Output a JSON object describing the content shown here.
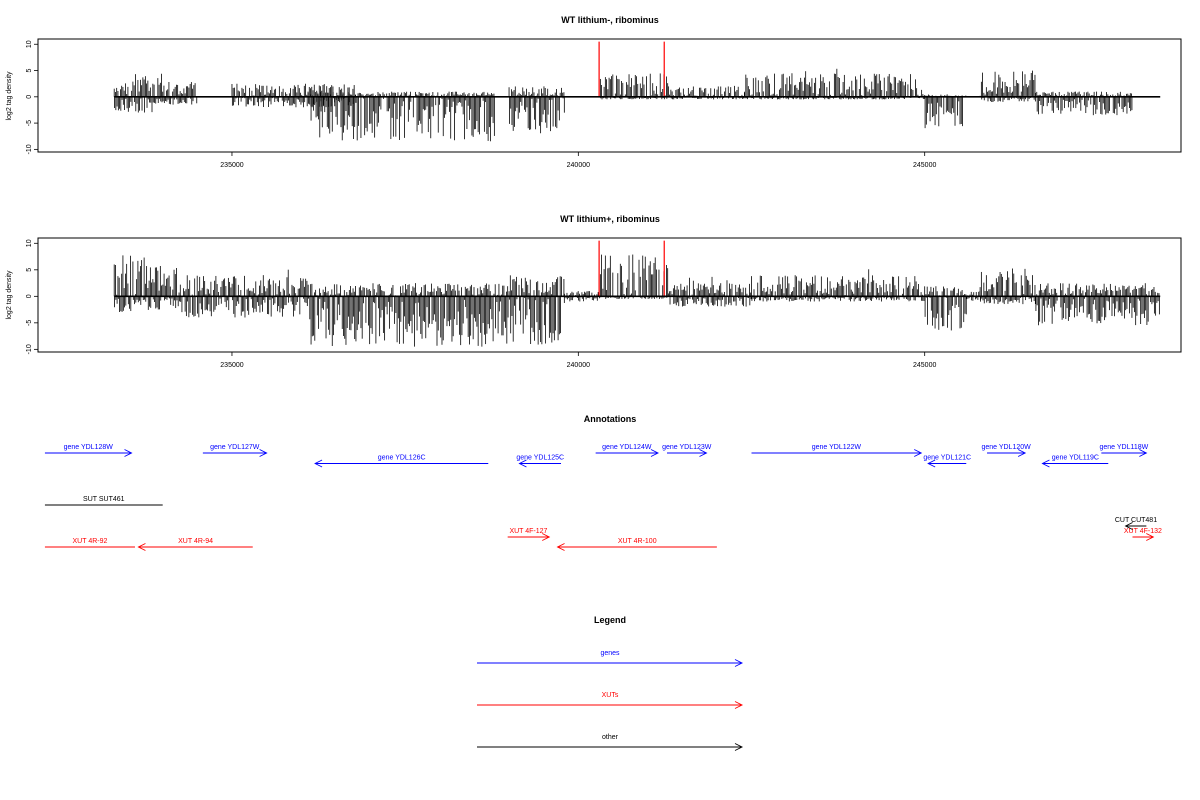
{
  "chart_data": [
    {
      "type": "bar",
      "title": "WT lithium-, ribominus",
      "ylabel": "log2 tag density",
      "xlim": [
        232200,
        248700
      ],
      "ylim": [
        -10.5,
        11
      ],
      "x_ticks": [
        235000,
        240000,
        245000
      ],
      "y_ticks": [
        -10,
        -5,
        0,
        5,
        10
      ],
      "x_tick_labels": [
        "235000",
        "240000",
        "245000"
      ],
      "y_tick_labels": [
        "-10",
        "-5",
        "0",
        "5",
        "10"
      ],
      "baseline_extent": [
        233300,
        248400
      ],
      "density_profile": [
        {
          "start": 233300,
          "end": 234000,
          "max": 4.5,
          "min": -3
        },
        {
          "start": 234000,
          "end": 234500,
          "max": 3,
          "min": -1.5
        },
        {
          "start": 235000,
          "end": 236800,
          "max": 2.5,
          "min": -2
        },
        {
          "start": 236100,
          "end": 238800,
          "max": 1,
          "min": -8.5
        },
        {
          "start": 239000,
          "end": 239800,
          "max": 2,
          "min": -7
        },
        {
          "start": 240300,
          "end": 241300,
          "max": 4.5,
          "min": -0.5
        },
        {
          "start": 241300,
          "end": 242400,
          "max": 2,
          "min": -0.5
        },
        {
          "start": 242400,
          "end": 245000,
          "max": 4.5,
          "min": -0.5
        },
        {
          "start": 245000,
          "end": 245600,
          "max": 0.5,
          "min": -6
        },
        {
          "start": 245800,
          "end": 246600,
          "max": 5,
          "min": -1
        },
        {
          "start": 246600,
          "end": 248000,
          "max": 1,
          "min": -3.5
        }
      ],
      "highlight_lines": [
        {
          "x": 240300,
          "y": 10.5,
          "color": "#ff0000"
        },
        {
          "x": 241240,
          "y": 10.5,
          "color": "#ff0000"
        }
      ]
    },
    {
      "type": "bar",
      "title": "WT lithium+, ribominus",
      "ylabel": "log2 tag density",
      "xlim": [
        232200,
        248700
      ],
      "ylim": [
        -10.5,
        11
      ],
      "x_ticks": [
        235000,
        240000,
        245000
      ],
      "y_ticks": [
        -10,
        -5,
        0,
        5,
        10
      ],
      "x_tick_labels": [
        "235000",
        "240000",
        "245000"
      ],
      "y_tick_labels": [
        "-10",
        "-5",
        "0",
        "5",
        "10"
      ],
      "baseline_extent": [
        233300,
        248400
      ],
      "density_profile": [
        {
          "start": 233300,
          "end": 234300,
          "max": 8,
          "min": -3
        },
        {
          "start": 234300,
          "end": 236100,
          "max": 4,
          "min": -4
        },
        {
          "start": 236100,
          "end": 239000,
          "max": 2.5,
          "min": -9.5
        },
        {
          "start": 239000,
          "end": 239800,
          "max": 4,
          "min": -10
        },
        {
          "start": 239800,
          "end": 240300,
          "max": 1,
          "min": -1
        },
        {
          "start": 240300,
          "end": 241300,
          "max": 8,
          "min": -0.5
        },
        {
          "start": 241300,
          "end": 242500,
          "max": 2.5,
          "min": -2
        },
        {
          "start": 242500,
          "end": 245000,
          "max": 4,
          "min": -1
        },
        {
          "start": 245000,
          "end": 245600,
          "max": 2,
          "min": -6.5
        },
        {
          "start": 245600,
          "end": 245800,
          "max": 1,
          "min": -1
        },
        {
          "start": 245800,
          "end": 246600,
          "max": 5.5,
          "min": -1.5
        },
        {
          "start": 246600,
          "end": 248400,
          "max": 2.5,
          "min": -5.5
        }
      ],
      "highlight_lines": [
        {
          "x": 240300,
          "y": 10.5,
          "color": "#ff0000"
        },
        {
          "x": 241240,
          "y": 10.5,
          "color": "#ff0000"
        }
      ]
    }
  ],
  "annotations": {
    "title": "Annotations",
    "xlim": [
      232200,
      248700
    ],
    "colors": {
      "gene": "#0000ff",
      "xut": "#ff0000",
      "other": "#000000"
    },
    "features": [
      {
        "label": "gene YDL128W",
        "type": "gene",
        "start": 232300,
        "end": 233550,
        "strand": "+",
        "row": 0
      },
      {
        "label": "gene YDL127W",
        "type": "gene",
        "start": 234580,
        "end": 235500,
        "strand": "+",
        "row": 0
      },
      {
        "label": "gene YDL126C",
        "type": "gene",
        "start": 236200,
        "end": 238700,
        "strand": "-",
        "row": 1
      },
      {
        "label": "gene YDL125C",
        "type": "gene",
        "start": 239150,
        "end": 239750,
        "strand": "-",
        "row": 1
      },
      {
        "label": "gene YDL124W",
        "type": "gene",
        "start": 240250,
        "end": 241150,
        "strand": "+",
        "row": 0
      },
      {
        "label": "gene YDL123W",
        "type": "gene",
        "start": 241280,
        "end": 241850,
        "strand": "+",
        "row": 0
      },
      {
        "label": "gene YDL122W",
        "type": "gene",
        "start": 242500,
        "end": 244950,
        "strand": "+",
        "row": 0
      },
      {
        "label": "gene YDL121C",
        "type": "gene",
        "start": 245050,
        "end": 245600,
        "strand": "-",
        "row": 1
      },
      {
        "label": "gene YDL120W",
        "type": "gene",
        "start": 245900,
        "end": 246450,
        "strand": "+",
        "row": 0
      },
      {
        "label": "gene YDL119C",
        "type": "gene",
        "start": 246700,
        "end": 247650,
        "strand": "-",
        "row": 1
      },
      {
        "label": "gene YDL118W",
        "type": "gene",
        "start": 247550,
        "end": 248200,
        "strand": "+",
        "row": 0
      },
      {
        "label": "SUT SUT461",
        "type": "other",
        "start": 232300,
        "end": 234000,
        "strand": "none",
        "row": 2
      },
      {
        "label": "CUT CUT481",
        "type": "other",
        "start": 247900,
        "end": 248200,
        "strand": "-",
        "row": 3
      },
      {
        "label": "XUT 4R-92",
        "type": "xut",
        "start": 232300,
        "end": 233600,
        "strand": "none",
        "row": 4
      },
      {
        "label": "XUT 4R-94",
        "type": "xut",
        "start": 233650,
        "end": 235300,
        "strand": "-",
        "row": 4
      },
      {
        "label": "XUT 4F-127",
        "type": "xut",
        "start": 238980,
        "end": 239580,
        "strand": "+",
        "row": 3.5
      },
      {
        "label": "XUT 4R-100",
        "type": "xut",
        "start": 239700,
        "end": 242000,
        "strand": "-",
        "row": 4
      },
      {
        "label": "XUT 4F-132",
        "type": "xut",
        "start": 248000,
        "end": 248300,
        "strand": "+",
        "row": 3.8
      }
    ]
  },
  "legend": {
    "title": "Legend",
    "items": [
      {
        "label": "genes",
        "color": "#0000ff"
      },
      {
        "label": "XUTs",
        "color": "#ff0000"
      },
      {
        "label": "other",
        "color": "#000000"
      }
    ]
  }
}
